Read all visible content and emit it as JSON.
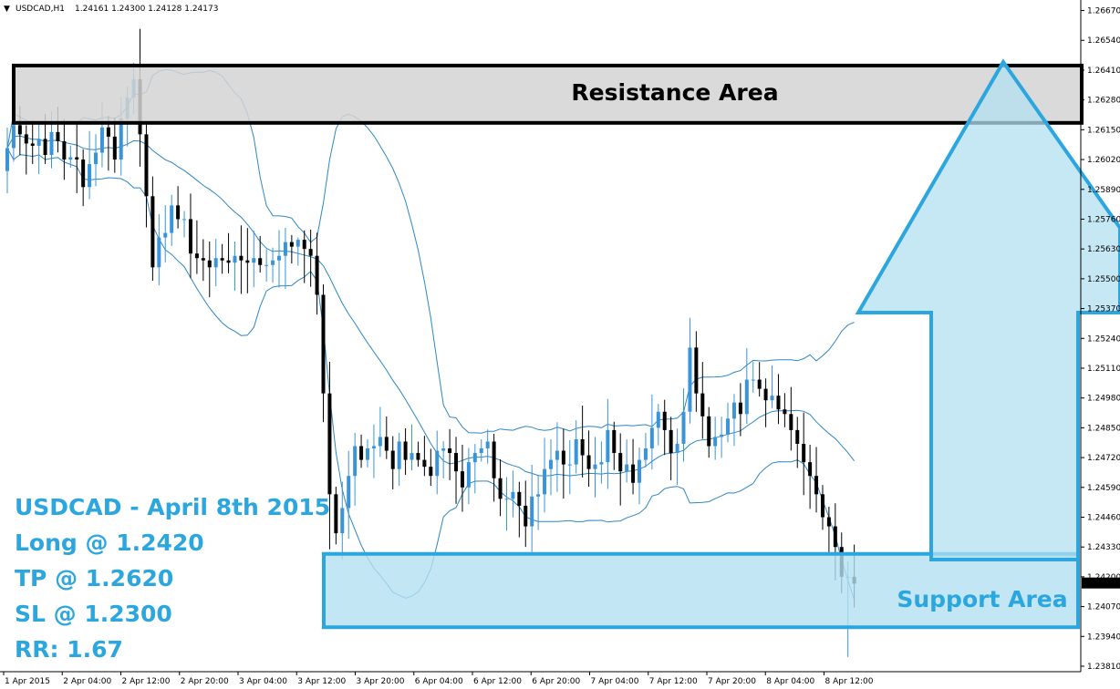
{
  "header": {
    "symbol": "USDCAD,H1",
    "ohlc": "1.24161 1.24300 1.24128 1.24173"
  },
  "annotation": {
    "title": "USDCAD - April 8th 2015",
    "long": "Long @ 1.2420",
    "tp": "TP @ 1.2620",
    "sl": "SL @ 1.2300",
    "rr": "RR: 1.67"
  },
  "zones": {
    "resistance_label": "Resistance Area",
    "support_label": "Support Area"
  },
  "colors": {
    "accent": "#2ba6de",
    "zone_fill": "#b3e0f0",
    "resistance_fill": "#d3d3d3",
    "bull": "#3a95d8",
    "bear": "#000000"
  },
  "chart_data": {
    "type": "candlestick",
    "symbol": "USDCAD",
    "timeframe": "H1",
    "y_ticks": [
      "1.26670",
      "1.26540",
      "1.26410",
      "1.26280",
      "1.26150",
      "1.26020",
      "1.25890",
      "1.25760",
      "1.25630",
      "1.25500",
      "1.25370",
      "1.25240",
      "1.25110",
      "1.24980",
      "1.24850",
      "1.24720",
      "1.24590",
      "1.24460",
      "1.24330",
      "1.24200",
      "1.24070",
      "1.23940",
      "1.23810"
    ],
    "ylim": [
      1.2381,
      1.267
    ],
    "last_price": "1.24173",
    "x_ticks": [
      "1 Apr 2015",
      "2 Apr 04:00",
      "2 Apr 12:00",
      "2 Apr 20:00",
      "3 Apr 04:00",
      "3 Apr 12:00",
      "3 Apr 20:00",
      "6 Apr 04:00",
      "6 Apr 12:00",
      "6 Apr 20:00",
      "7 Apr 04:00",
      "7 Apr 12:00",
      "7 Apr 20:00",
      "8 Apr 04:00",
      "8 Apr 12:00"
    ],
    "resistance_zone": [
      1.2618,
      1.2643
    ],
    "support_zone": [
      1.2398,
      1.243
    ],
    "trade": {
      "entry": 1.242,
      "take_profit": 1.262,
      "stop_loss": 1.23,
      "risk_reward": 1.67
    },
    "close": [
      1.2607,
      1.2617,
      1.2613,
      1.2609,
      1.2608,
      1.2611,
      1.2604,
      1.2614,
      1.261,
      1.2602,
      1.2603,
      1.2602,
      1.259,
      1.26,
      1.2605,
      1.2616,
      1.2612,
      1.2602,
      1.262,
      1.2629,
      1.2637,
      1.2613,
      1.2586,
      1.2555,
      1.2568,
      1.257,
      1.2582,
      1.2576,
      1.2576,
      1.2561,
      1.2559,
      1.2558,
      1.2555,
      1.2559,
      1.2558,
      1.2557,
      1.256,
      1.2558,
      1.2557,
      1.2559,
      1.2556,
      1.2556,
      1.2558,
      1.256,
      1.2566,
      1.2564,
      1.2567,
      1.2563,
      1.256,
      1.2543,
      1.25,
      1.2456,
      1.2439,
      1.245,
      1.2464,
      1.2477,
      1.2471,
      1.2476,
      1.2477,
      1.2481,
      1.2475,
      1.2467,
      1.2479,
      1.2471,
      1.2474,
      1.2471,
      1.2468,
      1.2464,
      1.2475,
      1.2476,
      1.2474,
      1.2466,
      1.2459,
      1.247,
      1.2474,
      1.2476,
      1.2479,
      1.2463,
      1.2454,
      1.2454,
      1.2457,
      1.2451,
      1.2442,
      1.2455,
      1.2456,
      1.2467,
      1.2471,
      1.2475,
      1.2469,
      1.2469,
      1.248,
      1.2473,
      1.2467,
      1.2469,
      1.247,
      1.2484,
      1.2474,
      1.2466,
      1.2469,
      1.2461,
      1.2471,
      1.2476,
      1.2485,
      1.2492,
      1.2484,
      1.2474,
      1.2478,
      1.2492,
      1.252,
      1.25,
      1.249,
      1.2477,
      1.2481,
      1.2482,
      1.2489,
      1.2496,
      1.2491,
      1.2506,
      1.2506,
      1.2502,
      1.2497,
      1.2499,
      1.2493,
      1.2491,
      1.2484,
      1.2478,
      1.247,
      1.2464,
      1.2456,
      1.2446,
      1.2442,
      1.2433,
      1.242,
      1.242,
      1.2417
    ]
  }
}
